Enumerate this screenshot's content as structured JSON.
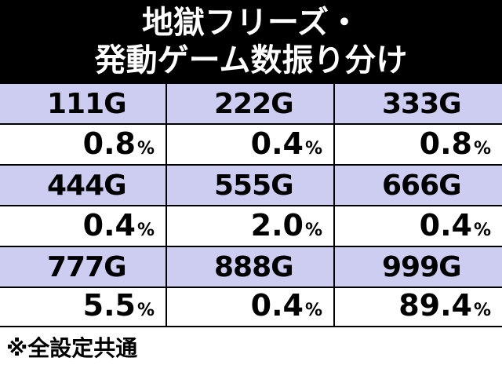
{
  "header": {
    "title_line1": "地獄フリーズ・",
    "title_line2": "発動ゲーム数振り分け"
  },
  "table": {
    "rows": [
      {
        "games": [
          "111G",
          "222G",
          "333G"
        ],
        "rates": [
          "0.8",
          "0.4",
          "0.8"
        ]
      },
      {
        "games": [
          "444G",
          "555G",
          "666G"
        ],
        "rates": [
          "0.4",
          "2.0",
          "0.4"
        ]
      },
      {
        "games": [
          "777G",
          "888G",
          "999G"
        ],
        "rates": [
          "5.5",
          "0.4",
          "89.4"
        ]
      }
    ],
    "unit": "%"
  },
  "footnote": "※全設定共通",
  "colors": {
    "header_bg": "#000000",
    "label_bg": "#cdcdf2",
    "value_bg": "#ffffff"
  }
}
